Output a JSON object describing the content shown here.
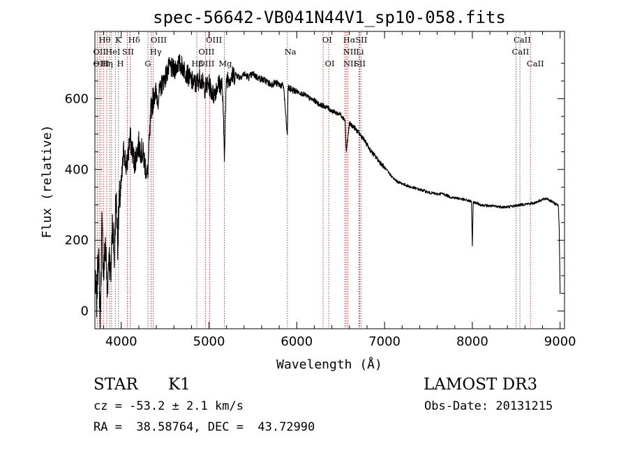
{
  "chart_data": {
    "type": "line",
    "title": "spec-56642-VB041N44V1_sp10-058.fits",
    "xlabel": "Wavelength (Å)",
    "ylabel": "Flux (relative)",
    "xlim": [
      3700,
      9050
    ],
    "ylim": [
      -50,
      790
    ],
    "xticks": [
      4000,
      5000,
      6000,
      7000,
      8000,
      9000
    ],
    "yticks": [
      0,
      200,
      400,
      600
    ],
    "series": [
      {
        "name": "flux",
        "x": [
          3700,
          3720,
          3740,
          3760,
          3780,
          3800,
          3820,
          3840,
          3860,
          3880,
          3900,
          3920,
          3940,
          3960,
          3980,
          4000,
          4030,
          4060,
          4100,
          4150,
          4200,
          4250,
          4300,
          4340,
          4380,
          4420,
          4460,
          4500,
          4550,
          4600,
          4650,
          4700,
          4750,
          4800,
          4850,
          4900,
          4950,
          5000,
          5050,
          5100,
          5150,
          5175,
          5200,
          5250,
          5300,
          5350,
          5400,
          5450,
          5500,
          5550,
          5600,
          5650,
          5700,
          5750,
          5800,
          5850,
          5893,
          5900,
          5950,
          6000,
          6050,
          6100,
          6150,
          6200,
          6250,
          6300,
          6350,
          6400,
          6450,
          6500,
          6550,
          6563,
          6600,
          6650,
          6700,
          6750,
          6800,
          6850,
          6900,
          6950,
          7000,
          7050,
          7100,
          7150,
          7200,
          7250,
          7300,
          7350,
          7400,
          7450,
          7500,
          7550,
          7600,
          7650,
          7700,
          7750,
          7800,
          7850,
          7900,
          7950,
          7990,
          8000,
          8010,
          8050,
          8100,
          8150,
          8200,
          8250,
          8300,
          8350,
          8400,
          8450,
          8500,
          8550,
          8600,
          8650,
          8700,
          8750,
          8800,
          8850,
          8900,
          8950,
          8980,
          8990,
          9000
        ],
        "values": [
          80,
          30,
          180,
          -20,
          240,
          100,
          200,
          50,
          170,
          90,
          260,
          150,
          330,
          200,
          310,
          350,
          460,
          400,
          490,
          420,
          470,
          440,
          380,
          570,
          620,
          600,
          640,
          660,
          690,
          680,
          700,
          690,
          670,
          650,
          640,
          660,
          630,
          640,
          610,
          640,
          640,
          450,
          660,
          660,
          670,
          660,
          670,
          660,
          670,
          660,
          655,
          650,
          640,
          645,
          640,
          635,
          490,
          630,
          625,
          620,
          615,
          610,
          600,
          595,
          585,
          580,
          575,
          565,
          560,
          555,
          540,
          450,
          530,
          520,
          505,
          490,
          470,
          450,
          435,
          420,
          405,
          390,
          375,
          365,
          360,
          355,
          350,
          347,
          343,
          340,
          335,
          333,
          330,
          332,
          328,
          322,
          320,
          318,
          315,
          312,
          310,
          180,
          308,
          305,
          300,
          298,
          297,
          296,
          295,
          294,
          294,
          296,
          298,
          300,
          302,
          303,
          305,
          310,
          315,
          318,
          310,
          302,
          300,
          230,
          50
        ]
      }
    ],
    "lines": [
      {
        "wl": 3727,
        "label": "OII"
      },
      {
        "wl": 3750,
        "label": "OIII"
      },
      {
        "wl": 3770,
        "label": "Hθ"
      },
      {
        "wl": 3797,
        "label": "Hη"
      },
      {
        "wl": 3835,
        "label": "Hη"
      },
      {
        "wl": 3869,
        "label": "HeI"
      },
      {
        "wl": 3889,
        "label": "HeI"
      },
      {
        "wl": 3933,
        "label": "K"
      },
      {
        "wl": 3969,
        "label": "H"
      },
      {
        "wl": 4070,
        "label": "SII"
      },
      {
        "wl": 4102,
        "label": "Hδ"
      },
      {
        "wl": 4304,
        "label": "G"
      },
      {
        "wl": 4340,
        "label": "Hγ"
      },
      {
        "wl": 4363,
        "label": "OIII"
      },
      {
        "wl": 4861,
        "label": "Hβ"
      },
      {
        "wl": 4959,
        "label": "OIII"
      },
      {
        "wl": 5007,
        "label": "OIII"
      },
      {
        "wl": 5175,
        "label": "Mg"
      },
      {
        "wl": 5893,
        "label": "Na"
      },
      {
        "wl": 6300,
        "label": "OI"
      },
      {
        "wl": 6364,
        "label": "OI"
      },
      {
        "wl": 6548,
        "label": "NII"
      },
      {
        "wl": 6563,
        "label": "Hα"
      },
      {
        "wl": 6583,
        "label": "NII"
      },
      {
        "wl": 6708,
        "label": "Li"
      },
      {
        "wl": 6716,
        "label": "SII"
      },
      {
        "wl": 6731,
        "label": "SII"
      },
      {
        "wl": 8498,
        "label": "CaII"
      },
      {
        "wl": 8542,
        "label": "CaII"
      },
      {
        "wl": 8662,
        "label": "CaII"
      }
    ],
    "labels": [
      {
        "text": "Hθ",
        "wl": 3745,
        "row": 0
      },
      {
        "text": "K",
        "wl": 3933,
        "row": 0
      },
      {
        "text": "Hδ",
        "wl": 4080,
        "row": 0
      },
      {
        "text": "OIII",
        "wl": 4336,
        "row": 0
      },
      {
        "text": "OIII",
        "wl": 4965,
        "row": 0
      },
      {
        "text": "OI",
        "wl": 6290,
        "row": 0
      },
      {
        "text": "Hα",
        "wl": 6528,
        "row": 0
      },
      {
        "text": "SII",
        "wl": 6668,
        "row": 0
      },
      {
        "text": "CaII",
        "wl": 8470,
        "row": 0
      },
      {
        "text": "OII",
        "wl": 3680,
        "row": 1
      },
      {
        "text": "HeI",
        "wl": 3820,
        "row": 1
      },
      {
        "text": "SII",
        "wl": 4010,
        "row": 1
      },
      {
        "text": "Hγ",
        "wl": 4326,
        "row": 1
      },
      {
        "text": "OIII",
        "wl": 4880,
        "row": 1
      },
      {
        "text": "Na",
        "wl": 5860,
        "row": 1
      },
      {
        "text": "NII",
        "wl": 6528,
        "row": 1
      },
      {
        "text": "Li",
        "wl": 6675,
        "row": 1
      },
      {
        "text": "CaII",
        "wl": 8450,
        "row": 1
      },
      {
        "text": "OIII",
        "wl": 3680,
        "row": 2
      },
      {
        "text": "Hη",
        "wl": 3770,
        "row": 2
      },
      {
        "text": "H",
        "wl": 3950,
        "row": 2
      },
      {
        "text": "G",
        "wl": 4266,
        "row": 2
      },
      {
        "text": "Hβ",
        "wl": 4800,
        "row": 2
      },
      {
        "text": "OIII",
        "wl": 4880,
        "row": 2
      },
      {
        "text": "Mg",
        "wl": 5110,
        "row": 2
      },
      {
        "text": "OI",
        "wl": 6320,
        "row": 2
      },
      {
        "text": "NII",
        "wl": 6530,
        "row": 2
      },
      {
        "text": "SII",
        "wl": 6650,
        "row": 2
      },
      {
        "text": "CaII",
        "wl": 8620,
        "row": 2
      }
    ]
  },
  "info": {
    "class": "STAR",
    "subclass": "K1",
    "survey": "LAMOST DR3",
    "cz": "cz = -53.2 ± 2.1 km/s",
    "obsdate": "Obs-Date: 20131215",
    "radec": "RA =  38.58764, DEC =  43.72990"
  }
}
